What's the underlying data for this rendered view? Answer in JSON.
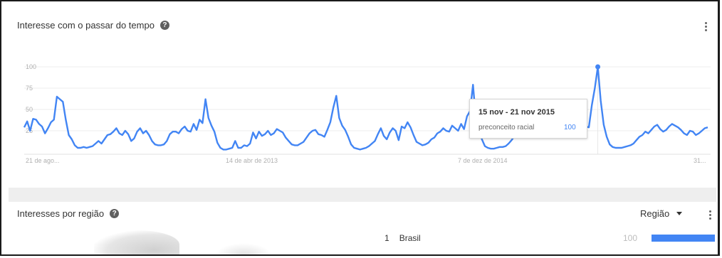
{
  "interest_over_time": {
    "title": "Interesse com o passar do tempo",
    "help_icon": "help-circle-icon",
    "menu_icon": "more-vert-icon"
  },
  "chart_data": {
    "type": "line",
    "ylim": [
      0,
      100
    ],
    "y_ticks": [
      25,
      50,
      75,
      100
    ],
    "x_tick_labels": [
      "21 de ago...",
      "14 de abr de 2013",
      "7 de dez de 2014",
      "31..."
    ],
    "grid": true,
    "color": "#4285f4",
    "series": [
      {
        "name": "preconceito racial",
        "values": [
          29,
          36,
          25,
          39,
          38,
          33,
          30,
          22,
          28,
          35,
          38,
          65,
          62,
          59,
          38,
          20,
          15,
          8,
          5,
          5,
          6,
          5,
          6,
          7,
          10,
          13,
          10,
          15,
          20,
          21,
          24,
          28,
          22,
          20,
          25,
          21,
          13,
          16,
          24,
          28,
          22,
          25,
          20,
          13,
          9,
          8,
          8,
          9,
          13,
          21,
          24,
          24,
          22,
          27,
          30,
          25,
          24,
          33,
          26,
          38,
          34,
          62,
          40,
          31,
          24,
          11,
          5,
          3,
          3,
          4,
          5,
          13,
          5,
          5,
          8,
          7,
          10,
          23,
          16,
          24,
          19,
          21,
          25,
          20,
          22,
          27,
          25,
          23,
          17,
          13,
          9,
          8,
          8,
          10,
          12,
          17,
          22,
          25,
          26,
          21,
          20,
          18,
          26,
          35,
          52,
          66,
          40,
          31,
          26,
          18,
          9,
          5,
          4,
          3,
          4,
          5,
          7,
          10,
          13,
          21,
          28,
          19,
          15,
          23,
          28,
          25,
          14,
          30,
          28,
          35,
          29,
          20,
          12,
          10,
          8,
          9,
          11,
          15,
          17,
          22,
          24,
          28,
          25,
          24,
          31,
          28,
          25,
          33,
          27,
          42,
          48,
          79,
          38,
          25,
          15,
          7,
          5,
          4,
          4,
          5,
          6,
          6,
          7,
          10,
          14,
          19,
          26,
          26,
          30,
          26,
          22,
          18,
          19,
          22,
          24,
          27,
          28,
          24,
          21,
          18,
          22,
          25,
          29,
          30,
          25,
          24,
          26,
          23,
          24,
          30,
          29,
          55,
          75,
          100,
          60,
          32,
          18,
          9,
          6,
          5,
          5,
          5,
          6,
          7,
          8,
          10,
          14,
          18,
          20,
          24,
          22,
          26,
          30,
          32,
          27,
          24,
          26,
          30,
          33,
          31,
          29,
          26,
          22,
          20,
          25,
          24,
          20,
          22,
          25,
          28,
          29
        ]
      }
    ],
    "tooltip": {
      "date": "15 nov - 21 nov 2015",
      "series": "preconceito racial",
      "value": "100"
    }
  },
  "region": {
    "title": "Interesses por região",
    "selector_label": "Região",
    "rows": [
      {
        "rank": "1",
        "name": "Brasil",
        "value": "100",
        "fraction": 1.0
      }
    ]
  }
}
